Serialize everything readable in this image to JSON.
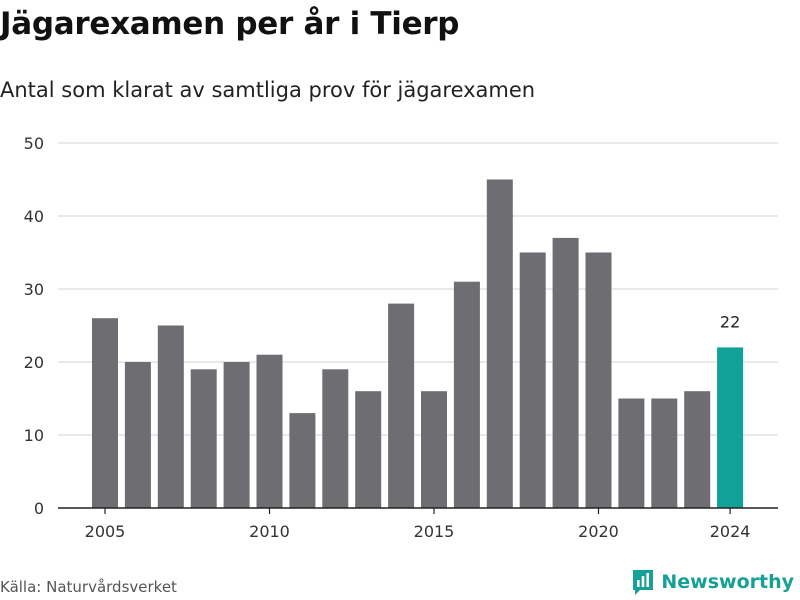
{
  "title": "Jägarexamen per år i Tierp",
  "subtitle": "Antal som klarat av samtliga prov för jägarexamen",
  "source": "Källa: Naturvårdsverket",
  "brand": "Newsworthy",
  "colors": {
    "bar": "#6e6d72",
    "highlight": "#10a297",
    "grid": "#dcdcdc",
    "axis": "#222222",
    "brand": "#17a095"
  },
  "chart_data": {
    "type": "bar",
    "categories": [
      "2005",
      "2006",
      "2007",
      "2008",
      "2009",
      "2010",
      "2011",
      "2012",
      "2013",
      "2014",
      "2015",
      "2016",
      "2017",
      "2018",
      "2019",
      "2020",
      "2021",
      "2022",
      "2023",
      "2024"
    ],
    "values": [
      26,
      20,
      25,
      19,
      20,
      21,
      13,
      19,
      16,
      28,
      16,
      31,
      45,
      35,
      37,
      35,
      15,
      15,
      16,
      22
    ],
    "x_tick_labels": [
      "2005",
      "2010",
      "2015",
      "2020",
      "2024"
    ],
    "y_ticks": [
      0,
      10,
      20,
      30,
      40,
      50
    ],
    "ylim": [
      0,
      50
    ],
    "highlight_category": "2024",
    "annotations": [
      {
        "category": "2024",
        "text": "22"
      }
    ],
    "grid": true
  }
}
